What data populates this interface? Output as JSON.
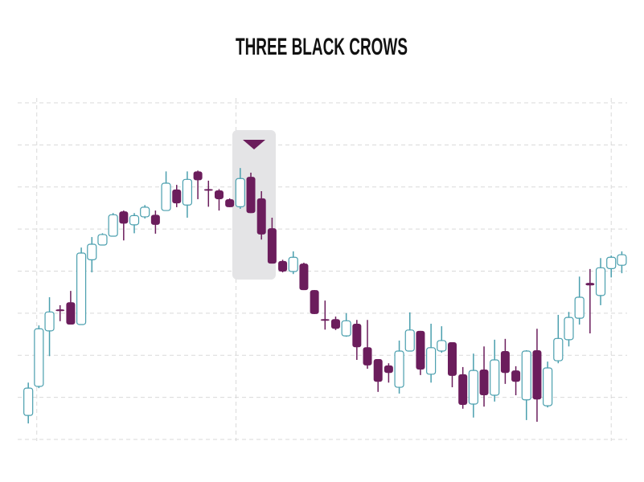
{
  "chart_data": {
    "type": "candlestick",
    "title": "THREE BLACK CROWS",
    "x": [
      0,
      1,
      2,
      3,
      4,
      5,
      6,
      7,
      8,
      9,
      10,
      11,
      12,
      13,
      14,
      15,
      16,
      17,
      18,
      19,
      20,
      21,
      22,
      23,
      24,
      25,
      26,
      27,
      28,
      29,
      30,
      31,
      32,
      33,
      34,
      35,
      36,
      37,
      38,
      39,
      40,
      41,
      42,
      43,
      44,
      45,
      46,
      47,
      48,
      49,
      50,
      51,
      52,
      53,
      54,
      55,
      56
    ],
    "open": [
      0.57,
      1.26,
      2.58,
      3.09,
      3.26,
      2.73,
      4.27,
      4.62,
      4.83,
      5.42,
      5.1,
      5.29,
      5.34,
      5.44,
      5.94,
      5.57,
      6.37,
      5.95,
      5.92,
      5.71,
      5.53,
      6.24,
      5.73,
      5.02,
      4.24,
      3.99,
      4.18,
      3.55,
      2.86,
      2.86,
      2.46,
      2.75,
      2.19,
      1.91,
      1.76,
      1.24,
      2.1,
      2.58,
      1.55,
      2.1,
      2.31,
      1.55,
      0.84,
      1.66,
      1.05,
      2.1,
      1.64,
      0.94,
      2.12,
      0.8,
      1.87,
      2.37,
      2.88,
      3.72,
      3.42,
      4.06,
      4.14
    ],
    "high": [
      1.35,
      2.71,
      3.38,
      3.19,
      3.53,
      4.56,
      4.81,
      4.9,
      5.38,
      5.44,
      5.38,
      5.57,
      5.44,
      6.37,
      6.05,
      6.37,
      6.39,
      6.15,
      5.95,
      5.73,
      6.45,
      6.34,
      5.9,
      5.27,
      4.27,
      4.47,
      4.2,
      3.55,
      3.3,
      2.92,
      3.0,
      2.84,
      2.84,
      1.91,
      1.81,
      2.35,
      3.02,
      2.58,
      2.75,
      2.69,
      2.31,
      1.72,
      2.04,
      2.21,
      2.37,
      2.39,
      1.74,
      2.12,
      2.63,
      1.85,
      2.96,
      3.03,
      3.87,
      4.05,
      4.31,
      4.37,
      4.47
    ],
    "low": [
      0.38,
      1.22,
      1.98,
      2.81,
      2.73,
      2.73,
      3.97,
      4.62,
      4.83,
      4.73,
      4.9,
      5.25,
      4.89,
      5.44,
      5.52,
      5.27,
      5.71,
      5.53,
      5.44,
      5.52,
      5.48,
      5.38,
      4.75,
      4.18,
      3.97,
      3.93,
      3.55,
      2.98,
      2.61,
      2.6,
      2.44,
      1.89,
      1.68,
      1.13,
      1.35,
      1.09,
      2.1,
      1.53,
      1.35,
      2.06,
      1.24,
      0.73,
      0.52,
      0.78,
      0.9,
      1.32,
      1.05,
      0.46,
      0.42,
      0.76,
      1.81,
      2.21,
      2.73,
      2.52,
      3.19,
      3.85,
      3.95
    ],
    "close": [
      1.22,
      2.63,
      3.03,
      3.05,
      2.73,
      4.43,
      4.64,
      4.87,
      5.34,
      5.13,
      5.32,
      5.52,
      5.1,
      6.09,
      5.61,
      6.18,
      6.16,
      5.92,
      5.71,
      5.52,
      6.2,
      5.38,
      4.87,
      4.18,
      3.99,
      4.33,
      3.55,
      2.98,
      2.82,
      2.63,
      2.82,
      2.19,
      1.76,
      1.37,
      1.58,
      2.1,
      2.6,
      1.66,
      2.18,
      2.35,
      1.51,
      0.82,
      1.64,
      1.05,
      1.89,
      1.58,
      1.37,
      2.1,
      0.95,
      1.7,
      2.4,
      2.9,
      3.38,
      3.66,
      4.08,
      4.33,
      4.39
    ],
    "up_color": "#4a9fae",
    "down_color": "#6b1d5c",
    "xlim": [
      -1,
      56.5
    ],
    "xticks": [
      0.8,
      19.6,
      55
    ],
    "ylim": [
      0,
      8
    ],
    "yticks": [
      0,
      1,
      2,
      3,
      4,
      5,
      6,
      7,
      8
    ],
    "grid": true
  }
}
